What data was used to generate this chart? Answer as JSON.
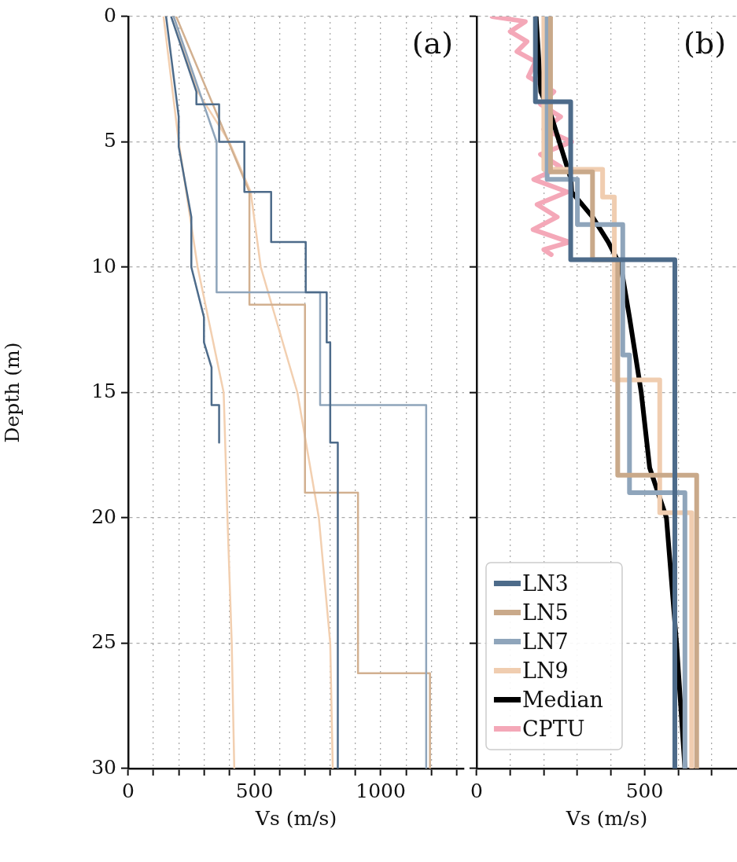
{
  "chart_data": [
    {
      "type": "line",
      "xlabel": "Vs (m/s)",
      "ylabel": "Depth (m)",
      "annotations": [
        "(a)"
      ],
      "xlim": [
        0,
        1330
      ],
      "ylim": [
        30,
        0
      ],
      "xticks": [
        0,
        {
          "value": 100,
          "label": null
        },
        {
          "value": 200,
          "label": null
        },
        {
          "value": 300,
          "label": null
        },
        {
          "value": 400,
          "label": null
        },
        500,
        {
          "value": 600,
          "label": null
        },
        {
          "value": 700,
          "label": null
        },
        {
          "value": 800,
          "label": null
        },
        {
          "value": 900,
          "label": null
        },
        1000,
        {
          "value": 1100,
          "label": null
        },
        {
          "value": 1200,
          "label": null
        },
        {
          "value": 1300,
          "label": null
        }
      ],
      "yticks": [
        0,
        5,
        10,
        15,
        20,
        25,
        30
      ],
      "grid": true,
      "line_style": "solid",
      "marker": "none",
      "series": [
        {
          "color": "#4d6b8a",
          "x": [
            150,
            200,
            200,
            250,
            250,
            300,
            300,
            330,
            330,
            360,
            360
          ],
          "values": [
            0,
            4,
            5.2,
            8,
            10,
            12,
            13,
            14,
            15.5,
            15.5,
            17
          ]
        },
        {
          "color": "#4d6b8a",
          "x": [
            170,
            270,
            270,
            360,
            360,
            460,
            460,
            566,
            566,
            703,
            703,
            786,
            786,
            800,
            800,
            830,
            830
          ],
          "values": [
            0,
            3,
            3.5,
            3.5,
            5,
            5,
            7,
            7,
            9,
            9,
            11,
            11,
            13,
            13,
            17,
            17,
            30
          ]
        },
        {
          "color": "#8fa5bb",
          "x": [
            180,
            350,
            350,
            760,
            760,
            1180,
            1180
          ],
          "values": [
            0,
            5,
            11,
            11,
            15.5,
            15.5,
            30
          ]
        },
        {
          "color": "#d2b090",
          "x": [
            190,
            480,
            480,
            700,
            700,
            910,
            910,
            1195,
            1195
          ],
          "values": [
            0,
            7,
            11.5,
            11.5,
            19,
            19,
            26.2,
            26.2,
            30
          ]
        },
        {
          "color": "#f2cfb0",
          "x": [
            140,
            200,
            275,
            378,
            393,
            410,
            420
          ],
          "values": [
            0,
            5,
            10,
            15,
            20,
            25,
            30
          ]
        },
        {
          "color": "#f2cfb0",
          "x": [
            180,
            275,
            400,
            485,
            525,
            670,
            755,
            800,
            810
          ],
          "values": [
            0,
            3,
            5,
            7,
            10,
            15,
            20,
            25,
            30
          ]
        }
      ]
    },
    {
      "type": "line",
      "xlabel": "Vs (m/s)",
      "annotations": [
        "(b)"
      ],
      "xlim": [
        0,
        775
      ],
      "ylim": [
        30,
        0
      ],
      "xticks": [
        0,
        {
          "value": 100,
          "label": null
        },
        {
          "value": 200,
          "label": null
        },
        {
          "value": 300,
          "label": null
        },
        {
          "value": 400,
          "label": null
        },
        500,
        {
          "value": 600,
          "label": null
        },
        {
          "value": 700,
          "label": null
        }
      ],
      "yticks": [
        0,
        5,
        10,
        15,
        20,
        25,
        30
      ],
      "tick_labels": "x",
      "grid": true,
      "line_style": "solid",
      "marker": "none",
      "legend": "bottom left",
      "series": [
        {
          "name": "LN3",
          "color": "#4d6b8a",
          "x": [
            175,
            175,
            280,
            280,
            590,
            590
          ],
          "values": [
            0,
            3.4,
            3.4,
            9.7,
            9.7,
            30
          ]
        },
        {
          "name": "LN5",
          "color": "#c9a98a",
          "x": [
            220,
            220,
            345,
            345,
            420,
            420,
            655,
            655
          ],
          "values": [
            0,
            6.2,
            6.2,
            9.7,
            9.7,
            18.3,
            18.3,
            30
          ]
        },
        {
          "name": "LN7",
          "color": "#8fa5bb",
          "x": [
            210,
            210,
            300,
            300,
            435,
            435,
            455,
            455,
            620,
            620
          ],
          "values": [
            0,
            6.5,
            6.5,
            8.3,
            8.3,
            13.5,
            13.5,
            19,
            19,
            30
          ]
        },
        {
          "name": "LN9",
          "color": "#f0cdb0",
          "x": [
            200,
            200,
            375,
            375,
            410,
            410,
            545,
            545,
            640,
            640
          ],
          "values": [
            0,
            6.1,
            6.1,
            7.2,
            7.2,
            14.5,
            14.5,
            19.8,
            19.8,
            30
          ]
        },
        {
          "name": "Median",
          "color": "#000000",
          "x": [
            177,
            191,
            223,
            281,
            283,
            345,
            392,
            430,
            455,
            490,
            515,
            565,
            595,
            620
          ],
          "values": [
            0,
            3,
            4,
            6.5,
            7,
            8,
            9,
            10,
            12,
            15,
            18,
            20,
            25,
            30
          ]
        },
        {
          "name": "CPTU",
          "color": "#f4a8b8",
          "x": [
            46,
            145,
            100,
            150,
            120,
            175,
            154,
            230,
            190,
            250,
            200,
            283,
            190,
            250,
            170,
            270,
            180,
            240,
            168,
            276,
            200,
            222
          ],
          "values": [
            0,
            0.2,
            0.6,
            1,
            1.4,
            1.8,
            2.4,
            3,
            3.5,
            4,
            4.5,
            5,
            5.5,
            6,
            6.5,
            7,
            7.5,
            8,
            8.5,
            9,
            9.3,
            9.5
          ]
        }
      ]
    }
  ]
}
